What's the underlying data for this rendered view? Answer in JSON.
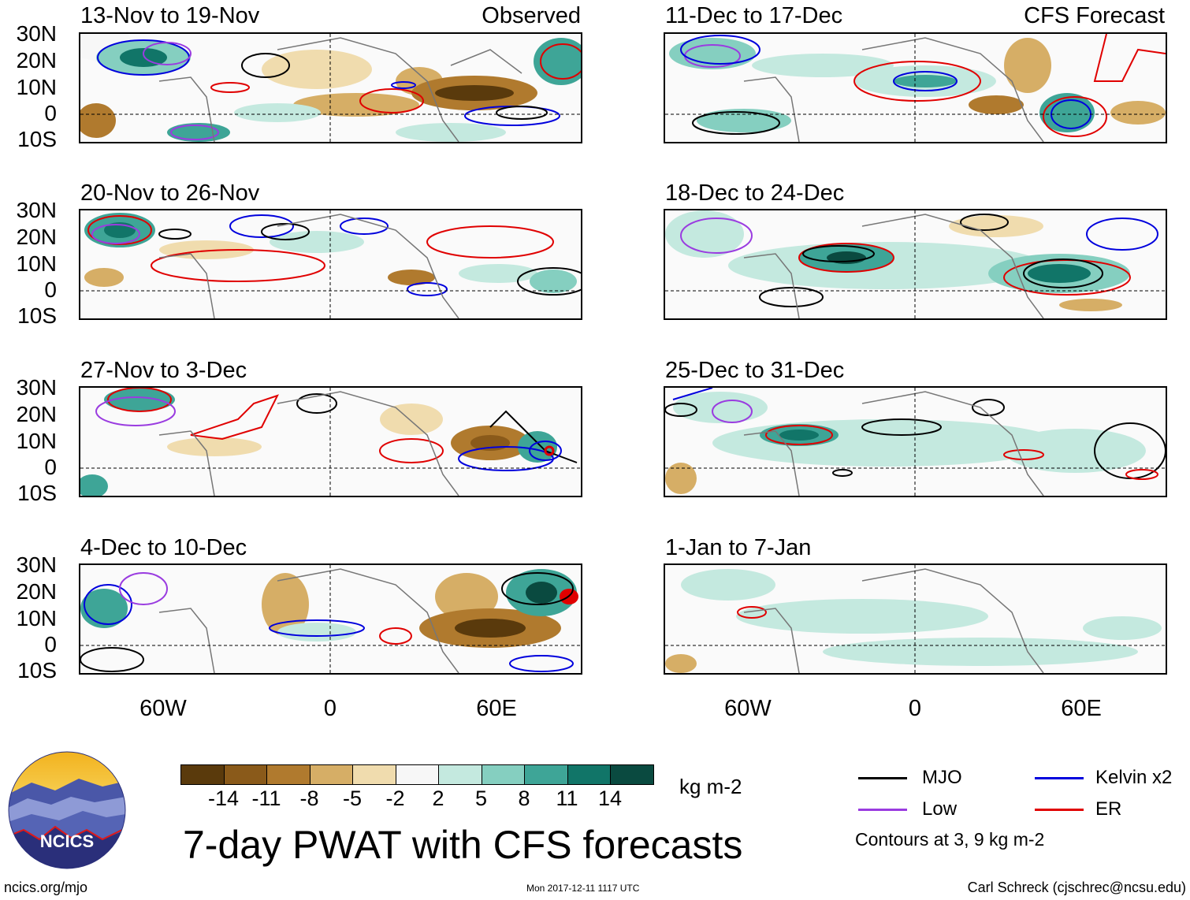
{
  "panels_left": [
    {
      "title": "13-Nov to 19-Nov",
      "label": "Observed"
    },
    {
      "title": "20-Nov to 26-Nov",
      "label": ""
    },
    {
      "title": "27-Nov to 3-Dec",
      "label": ""
    },
    {
      "title": "4-Dec to 10-Dec",
      "label": ""
    }
  ],
  "panels_right": [
    {
      "title": "11-Dec to 17-Dec",
      "label": "CFS Forecast"
    },
    {
      "title": "18-Dec to 24-Dec",
      "label": ""
    },
    {
      "title": "25-Dec to 31-Dec",
      "label": ""
    },
    {
      "title": "1-Jan to 7-Jan",
      "label": ""
    }
  ],
  "lat_labels": [
    "30N",
    "20N",
    "10N",
    "0",
    "10S"
  ],
  "lon_labels": [
    "60W",
    "0",
    "60E"
  ],
  "colorbar": {
    "ticks": [
      "-14",
      "-11",
      "-8",
      "-5",
      "-2",
      "2",
      "5",
      "8",
      "11",
      "14"
    ],
    "colors": [
      "#5a3a0c",
      "#8a5a1a",
      "#b07a2e",
      "#d6ae66",
      "#f0dcae",
      "#f7f7f7",
      "#c4e9df",
      "#85cfc0",
      "#3ea597",
      "#117568",
      "#0a4a40"
    ],
    "units": "kg m-2"
  },
  "title": "7-day PWAT with CFS forecasts",
  "legend": {
    "items": [
      {
        "label": "MJO",
        "color": "#000000"
      },
      {
        "label": "Kelvin x2",
        "color": "#0000dd"
      },
      {
        "label": "Low",
        "color": "#9a3ce0"
      },
      {
        "label": "ER",
        "color": "#e00000"
      }
    ],
    "note": "Contours at 3, 9 kg m-2"
  },
  "logo_text": "NCICS",
  "footer": {
    "left": "ncics.org/mjo",
    "center": "Mon 2017-12-11 1117 UTC",
    "right": "Carl Schreck (cjschrec@ncsu.edu)"
  }
}
